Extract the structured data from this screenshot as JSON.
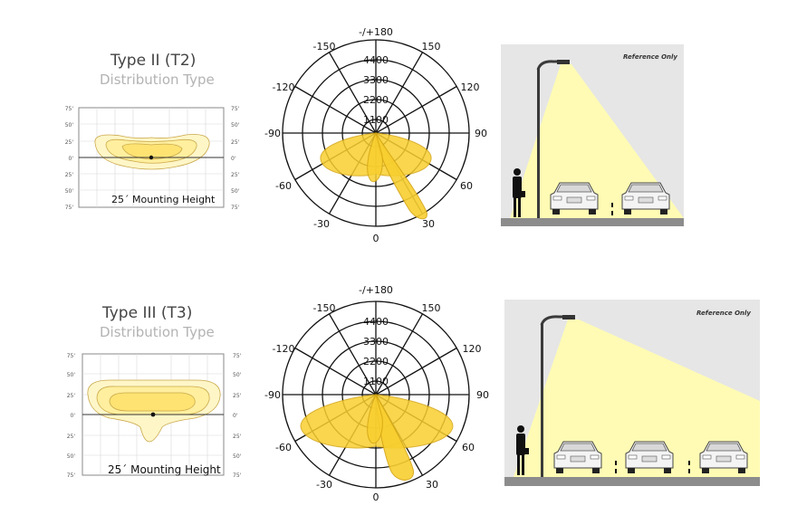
{
  "colors": {
    "light_fill": "#ffe98a",
    "light_fill_outer": "#fff6c8",
    "polar_fill": "#f8cf2f",
    "polar_stroke": "#d4a412",
    "scene_bg": "#e6e6e6",
    "ground": "#8c8c8c",
    "light_beam": "#fffbb4"
  },
  "sections": [
    {
      "title": "Type II (T2)",
      "subtitle": "Distribution Type",
      "iso": {
        "left_ticks": [
          "75'",
          "50'",
          "25'",
          "0'",
          "25'",
          "50'",
          "75'"
        ],
        "right_ticks": [
          "75'",
          "50'",
          "25'",
          "0'",
          "25'",
          "50'",
          "75'"
        ],
        "mounting": "25´ Mounting Height"
      },
      "polar": {
        "top": "-/+180",
        "left_angles": [
          "-150",
          "-120",
          "-90",
          "-60",
          "-30"
        ],
        "right_angles": [
          "150",
          "120",
          "90",
          "60",
          "30"
        ],
        "bottom": "0",
        "rings": [
          "4400",
          "3300",
          "2200",
          "1100"
        ]
      },
      "scene": {
        "ref": "Reference Only"
      }
    },
    {
      "title": "Type III (T3)",
      "subtitle": "Distribution Type",
      "iso": {
        "left_ticks": [
          "75'",
          "50'",
          "25'",
          "0'",
          "25'",
          "50'",
          "75'"
        ],
        "right_ticks": [
          "75'",
          "50'",
          "25'",
          "0'",
          "25'",
          "50'",
          "75'"
        ],
        "mounting": "25´ Mounting Height"
      },
      "polar": {
        "top": "-/+180",
        "left_angles": [
          "-150",
          "-120",
          "-90",
          "-60",
          "-30"
        ],
        "right_angles": [
          "150",
          "120",
          "90",
          "60",
          "30"
        ],
        "bottom": "0",
        "rings": [
          "4400",
          "3300",
          "2200",
          "1100"
        ]
      },
      "scene": {
        "ref": "Reference Only"
      }
    }
  ]
}
